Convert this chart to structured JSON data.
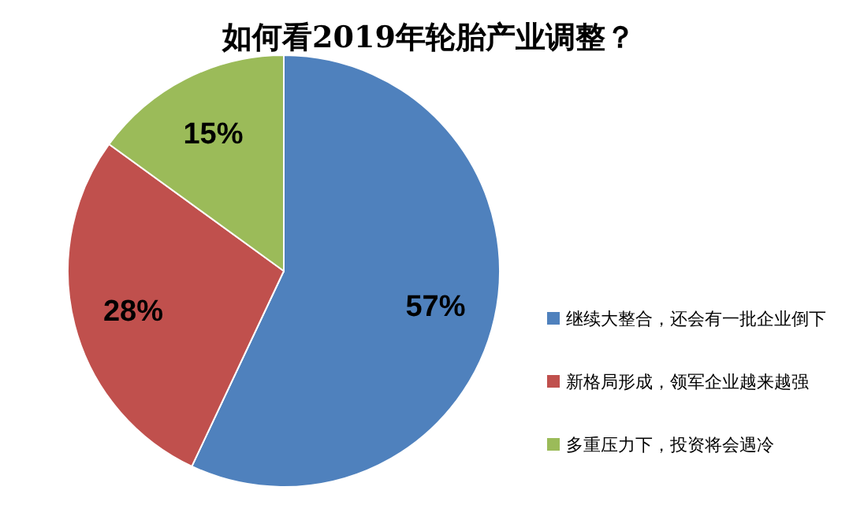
{
  "chart_data": {
    "type": "pie",
    "title": "如何看2019年轮胎产业调整？",
    "categories": [
      "继续大整合，还会有一批企业倒下",
      "新格局形成，领军企业越来越强",
      "多重压力下，投资将会遇冷"
    ],
    "values": [
      57,
      28,
      15
    ],
    "colors": [
      "#4f81bd",
      "#c0504d",
      "#9bbb59"
    ],
    "value_labels": [
      "57%",
      "28%",
      "15%"
    ],
    "legend": "right"
  }
}
